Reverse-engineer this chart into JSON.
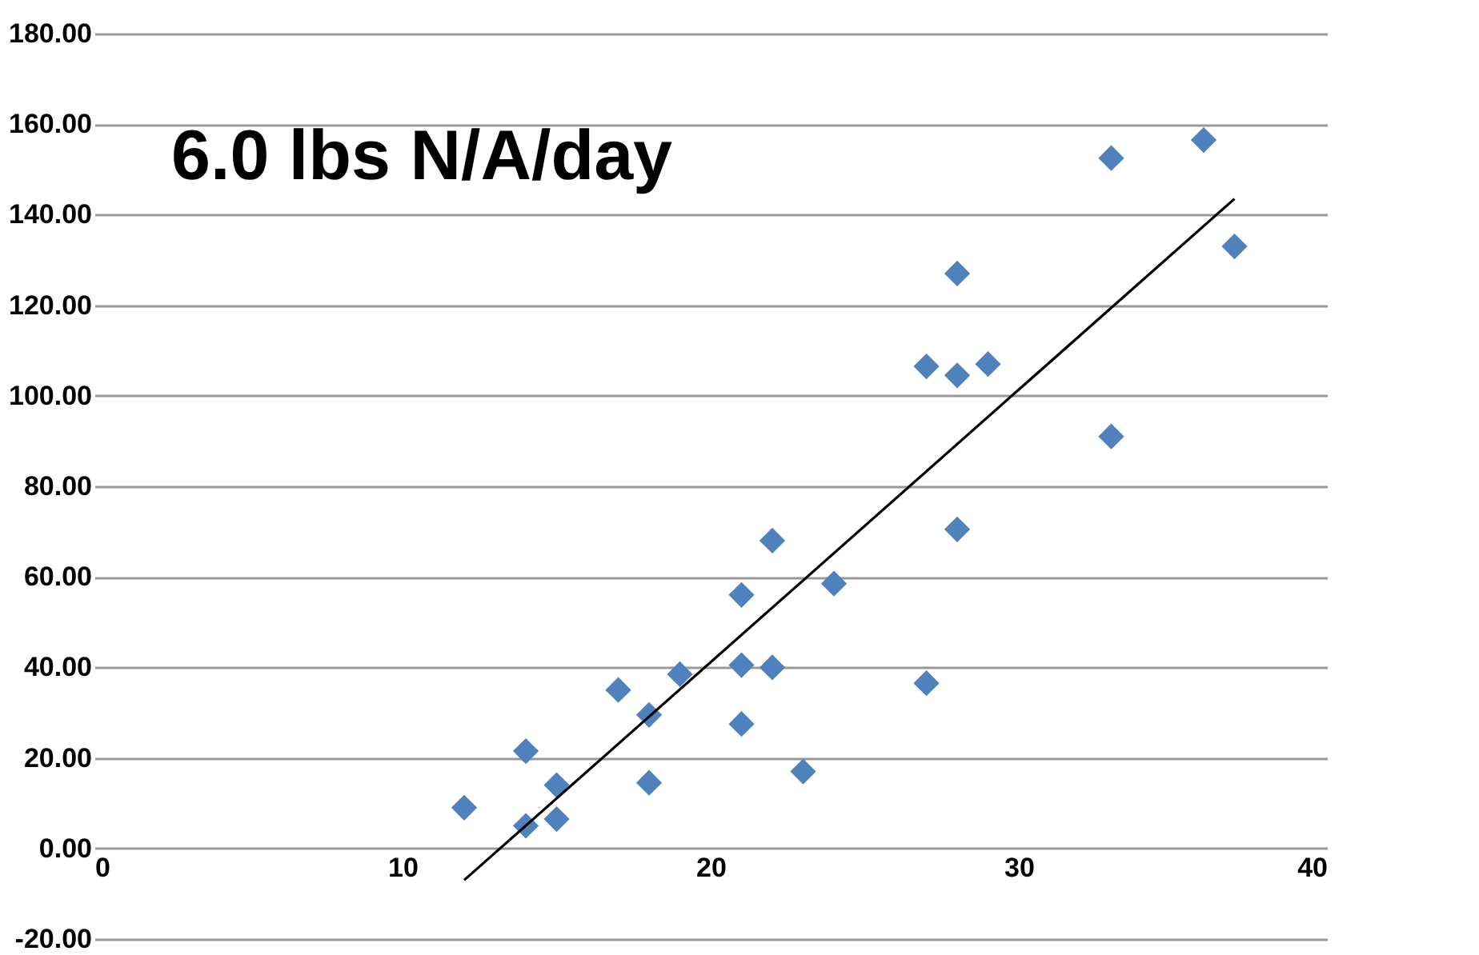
{
  "chart_data": {
    "type": "scatter",
    "xlim": [
      0,
      40
    ],
    "ylim": [
      -20,
      180
    ],
    "xticks": [
      0,
      10,
      20,
      30,
      40
    ],
    "yticks": [
      {
        "value": -20,
        "label": "-20.00"
      },
      {
        "value": 0,
        "label": "0.00"
      },
      {
        "value": 20,
        "label": "20.00"
      },
      {
        "value": 40,
        "label": "40.00"
      },
      {
        "value": 60,
        "label": "60.00"
      },
      {
        "value": 80,
        "label": "80.00"
      },
      {
        "value": 100,
        "label": "100.00"
      },
      {
        "value": 120,
        "label": "120.00"
      },
      {
        "value": 140,
        "label": "140.00"
      },
      {
        "value": 160,
        "label": "160.00"
      },
      {
        "value": 180,
        "label": "180.00"
      }
    ],
    "grid": "y",
    "annotations": [
      "6.0 lbs N/A/day"
    ],
    "series": [
      {
        "marker": "diamond",
        "color": "#4f81bd",
        "x": [
          12,
          14,
          14,
          15,
          15,
          17,
          18,
          18,
          19,
          21,
          21,
          21,
          22,
          22,
          23,
          24,
          27,
          27,
          28,
          28,
          28,
          29,
          33,
          33,
          36,
          37
        ],
        "values": [
          9,
          21.5,
          5,
          14,
          6.5,
          35,
          29.5,
          14.5,
          38.5,
          56,
          40.5,
          27.5,
          68,
          40,
          17,
          58.5,
          106.5,
          36.5,
          127,
          104.5,
          70.5,
          107,
          152.5,
          91,
          156.5,
          133
        ]
      },
      {
        "type": "line",
        "marker": "none",
        "line_style": "solid",
        "color": "#000000",
        "x": [
          12,
          37
        ],
        "values": [
          -7,
          143.5
        ]
      }
    ]
  }
}
